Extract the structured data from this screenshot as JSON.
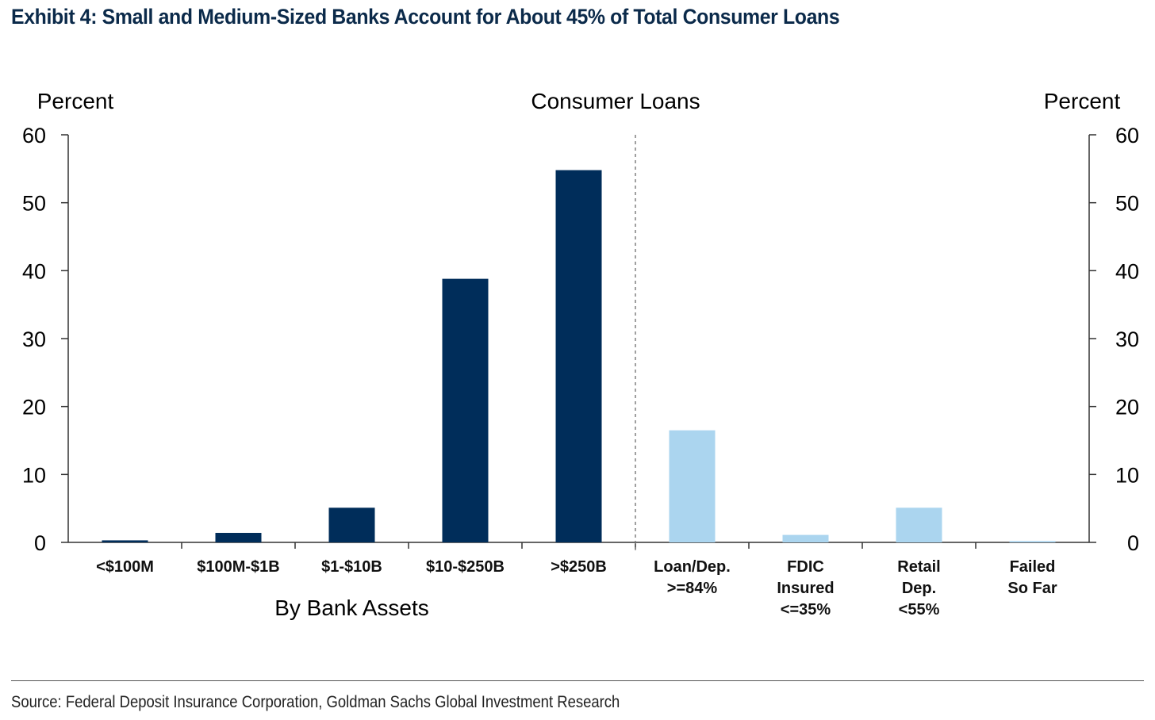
{
  "header": {
    "title": "Exhibit 4: Small and Medium-Sized Banks Account for About 45% of Total Consumer Loans"
  },
  "footer": {
    "source": "Source: Federal Deposit Insurance Corporation, Goldman Sachs Global Investment Research"
  },
  "chart_data": {
    "type": "bar",
    "title": "Consumer Loans",
    "ylabel_left": "Percent",
    "ylabel_right": "Percent",
    "ylim": [
      0,
      60
    ],
    "yticks": [
      0,
      10,
      20,
      30,
      40,
      50,
      60
    ],
    "grid": false,
    "groups": [
      {
        "label": "By Bank Assets",
        "color": "#002d5a",
        "categories": [
          [
            "<$100M"
          ],
          [
            "$100M-$1B"
          ],
          [
            "$1-$10B"
          ],
          [
            "$10-$250B"
          ],
          [
            ">$250B"
          ]
        ],
        "values": [
          0.3,
          1.4,
          5.1,
          38.8,
          54.8
        ]
      },
      {
        "label": "",
        "color": "#abd5ef",
        "categories": [
          [
            "Loan/Dep.",
            ">=84%"
          ],
          [
            "FDIC",
            "Insured",
            "<=35%"
          ],
          [
            "Retail",
            "Dep.",
            "<55%"
          ],
          [
            "Failed",
            "So Far"
          ]
        ],
        "values": [
          16.5,
          1.1,
          5.1,
          0.2
        ]
      }
    ]
  }
}
